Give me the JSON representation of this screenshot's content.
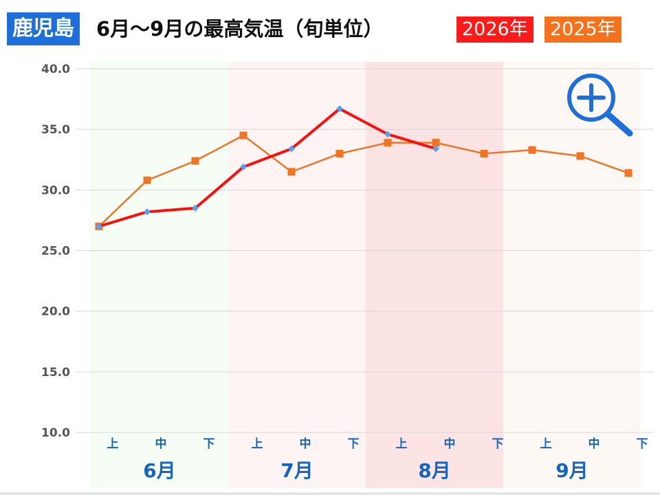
{
  "header": {
    "city": "鹿児島",
    "title": "6月～9月の最高気温（旬単位）",
    "legend_2026": "2026年",
    "legend_2025": "2025年"
  },
  "colors": {
    "series_2026": "#ff0d0d",
    "series_2026_marker": "#5aa0ee",
    "series_2025": "#f07423",
    "june_band": "#f5fdf4",
    "july_band": "#fdf4f3",
    "august_band": "#fde4e4",
    "september_band": "#fdf8f3",
    "badge_blue": "#1e6fd9",
    "label_blue": "#1565c0"
  },
  "icons": {
    "zoom": "zoom-in-magnifier-icon"
  },
  "chart_data": {
    "type": "line",
    "categories": [
      "上",
      "中",
      "下",
      "上",
      "中",
      "下",
      "上",
      "中",
      "下",
      "上",
      "中",
      "下"
    ],
    "groups": [
      {
        "label": "6月",
        "span": 3
      },
      {
        "label": "7月",
        "span": 3
      },
      {
        "label": "8月",
        "span": 3
      },
      {
        "label": "9月",
        "span": 3
      }
    ],
    "yticks": [
      "10.0",
      "15.0",
      "20.0",
      "25.0",
      "30.0",
      "35.0",
      "40.0"
    ],
    "ylim": [
      10,
      40
    ],
    "grid": true,
    "series": [
      {
        "name": "2026年",
        "values": [
          27.0,
          28.2,
          28.5,
          31.9,
          33.4,
          36.7,
          34.6,
          33.4,
          null,
          null,
          null,
          null
        ]
      },
      {
        "name": "2025年",
        "values": [
          27.0,
          30.8,
          32.4,
          34.5,
          31.5,
          33.0,
          33.9,
          33.9,
          33.0,
          33.3,
          32.8,
          31.4
        ]
      }
    ]
  }
}
